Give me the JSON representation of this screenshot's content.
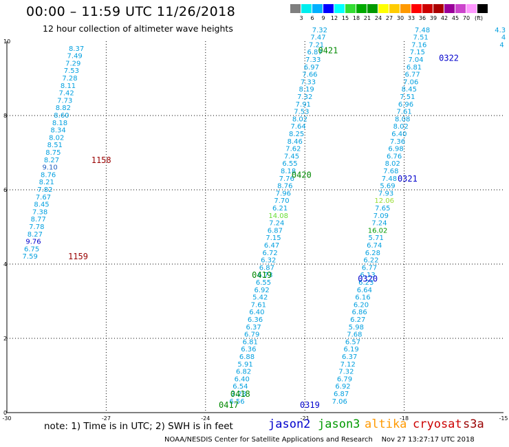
{
  "header": {
    "title": "00:00 – 11:59 UTC 11/26/2018",
    "subtitle": "12 hour collection of altimeter wave heights"
  },
  "legend": {
    "colors": [
      "#7f7f7f",
      "#00eeee",
      "#00b0ff",
      "#0000ff",
      "#00ffff",
      "#33dd33",
      "#00aa00",
      "#009900",
      "#ffff00",
      "#ffcc00",
      "#ff9900",
      "#ff0000",
      "#cc0000",
      "#aa0000",
      "#990099",
      "#cc44cc",
      "#ff99ff",
      "#000000"
    ],
    "labels": [
      "3",
      "6",
      "9",
      "12",
      "15",
      "18",
      "21",
      "24",
      "27",
      "30",
      "33",
      "36",
      "39",
      "42",
      "45",
      "70",
      "(ft)"
    ]
  },
  "footer": {
    "note": "note: 1) Time is in UTC; 2) SWH is in feet",
    "credit": "NOAA/NESDIS Center for Satellite Applications and Research    Nov 27 13:27:17 UTC 2018"
  },
  "satellites": [
    {
      "name": "jason2",
      "color": "#0000cc"
    },
    {
      "name": "jason3",
      "color": "#009900"
    },
    {
      "name": "altika",
      "color": "#ff9900"
    },
    {
      "name": "cryosat",
      "color": "#cc0000"
    },
    {
      "name": "s3a",
      "color": "#990000"
    }
  ],
  "chart_data": {
    "type": "scatter",
    "xlim": [
      -30,
      -15
    ],
    "ylim": [
      0,
      10
    ],
    "xticks": [
      "-30",
      "-27",
      "-24",
      "-21",
      "-18",
      "-15"
    ],
    "yticks": [
      "0",
      "2",
      "4",
      "6",
      "8",
      "10"
    ],
    "grid": true,
    "tracks": [
      {
        "color": "#009fdf",
        "points": [
          {
            "x": -27.9,
            "y": 9.8,
            "v": "8.37"
          },
          {
            "x": -27.95,
            "y": 9.6,
            "v": "7.49"
          },
          {
            "x": -28.0,
            "y": 9.4,
            "v": "7.29"
          },
          {
            "x": -28.05,
            "y": 9.2,
            "v": "7.53"
          },
          {
            "x": -28.1,
            "y": 9.0,
            "v": "7.28"
          },
          {
            "x": -28.15,
            "y": 8.8,
            "v": "8.11"
          },
          {
            "x": -28.2,
            "y": 8.6,
            "v": "7.42"
          },
          {
            "x": -28.25,
            "y": 8.4,
            "v": "7.73"
          },
          {
            "x": -28.3,
            "y": 8.2,
            "v": "8.82"
          },
          {
            "x": -28.35,
            "y": 8.0,
            "v": "8.60"
          },
          {
            "x": -28.4,
            "y": 7.8,
            "v": "8.18"
          },
          {
            "x": -28.45,
            "y": 7.6,
            "v": "8.34"
          },
          {
            "x": -28.5,
            "y": 7.4,
            "v": "8.02"
          },
          {
            "x": -28.55,
            "y": 7.2,
            "v": "8.51"
          },
          {
            "x": -28.6,
            "y": 7.0,
            "v": "8.75"
          },
          {
            "x": -28.65,
            "y": 6.8,
            "v": "8.27"
          },
          {
            "x": -28.7,
            "y": 6.6,
            "v": "9.10",
            "c": "#1f5fbf"
          },
          {
            "x": -28.75,
            "y": 6.4,
            "v": "8.76"
          },
          {
            "x": -28.8,
            "y": 6.2,
            "v": "8.21"
          },
          {
            "x": -28.85,
            "y": 6.0,
            "v": "7.82"
          },
          {
            "x": -28.9,
            "y": 5.8,
            "v": "7.67"
          },
          {
            "x": -28.95,
            "y": 5.6,
            "v": "8.45"
          },
          {
            "x": -29.0,
            "y": 5.4,
            "v": "7.38"
          },
          {
            "x": -29.05,
            "y": 5.2,
            "v": "8.77"
          },
          {
            "x": -29.1,
            "y": 5.0,
            "v": "7.78"
          },
          {
            "x": -29.15,
            "y": 4.8,
            "v": "8.27"
          },
          {
            "x": -29.2,
            "y": 4.6,
            "v": "9.76",
            "c": "#0000cc"
          },
          {
            "x": -29.25,
            "y": 4.4,
            "v": "6.75"
          },
          {
            "x": -29.3,
            "y": 4.2,
            "v": "7.59"
          }
        ]
      },
      {
        "color": "#009fdf",
        "points": [
          {
            "x": -20.55,
            "y": 10.3,
            "v": "7.32"
          },
          {
            "x": -20.6,
            "y": 10.1,
            "v": "7.47"
          },
          {
            "x": -20.65,
            "y": 9.9,
            "v": "7.21"
          },
          {
            "x": -20.7,
            "y": 9.7,
            "v": "6.87"
          },
          {
            "x": -20.75,
            "y": 9.5,
            "v": "7.33"
          },
          {
            "x": -20.8,
            "y": 9.3,
            "v": "6.97"
          },
          {
            "x": -20.85,
            "y": 9.1,
            "v": "7.66"
          },
          {
            "x": -20.9,
            "y": 8.9,
            "v": "7.33"
          },
          {
            "x": -20.95,
            "y": 8.7,
            "v": "8.19"
          },
          {
            "x": -21.0,
            "y": 8.5,
            "v": "7.32"
          },
          {
            "x": -21.05,
            "y": 8.3,
            "v": "7.91"
          },
          {
            "x": -21.1,
            "y": 8.1,
            "v": "7.53"
          },
          {
            "x": -21.15,
            "y": 7.9,
            "v": "8.02"
          },
          {
            "x": -21.2,
            "y": 7.7,
            "v": "7.64"
          },
          {
            "x": -21.25,
            "y": 7.5,
            "v": "8.25"
          },
          {
            "x": -21.3,
            "y": 7.3,
            "v": "8.46"
          },
          {
            "x": -21.35,
            "y": 7.1,
            "v": "7.62"
          },
          {
            "x": -21.4,
            "y": 6.9,
            "v": "7.45"
          },
          {
            "x": -21.45,
            "y": 6.7,
            "v": "6.55"
          },
          {
            "x": -21.5,
            "y": 6.5,
            "v": "8.18"
          },
          {
            "x": -21.55,
            "y": 6.3,
            "v": "7.76"
          },
          {
            "x": -21.6,
            "y": 6.1,
            "v": "8.76"
          },
          {
            "x": -21.65,
            "y": 5.9,
            "v": "7.96"
          },
          {
            "x": -21.7,
            "y": 5.7,
            "v": "7.70"
          },
          {
            "x": -21.75,
            "y": 5.5,
            "v": "6.21"
          },
          {
            "x": -21.8,
            "y": 5.3,
            "v": "14.08",
            "c": "#66dd33"
          },
          {
            "x": -21.85,
            "y": 5.1,
            "v": "7.24"
          },
          {
            "x": -21.9,
            "y": 4.9,
            "v": "6.87"
          },
          {
            "x": -21.95,
            "y": 4.7,
            "v": "7.15"
          },
          {
            "x": -22.0,
            "y": 4.5,
            "v": "6.47"
          },
          {
            "x": -22.05,
            "y": 4.3,
            "v": "6.72"
          },
          {
            "x": -22.1,
            "y": 4.1,
            "v": "6.32"
          },
          {
            "x": -22.15,
            "y": 3.9,
            "v": "6.87"
          },
          {
            "x": -22.2,
            "y": 3.7,
            "v": "6.73"
          },
          {
            "x": -22.25,
            "y": 3.5,
            "v": "6.55"
          },
          {
            "x": -22.3,
            "y": 3.3,
            "v": "6.92"
          },
          {
            "x": -22.35,
            "y": 3.1,
            "v": "5.42"
          },
          {
            "x": -22.4,
            "y": 2.9,
            "v": "7.61"
          },
          {
            "x": -22.45,
            "y": 2.7,
            "v": "6.40"
          },
          {
            "x": -22.5,
            "y": 2.5,
            "v": "6.36"
          },
          {
            "x": -22.55,
            "y": 2.3,
            "v": "6.37"
          },
          {
            "x": -22.6,
            "y": 2.1,
            "v": "6.79"
          },
          {
            "x": -22.65,
            "y": 1.9,
            "v": "6.81"
          },
          {
            "x": -22.7,
            "y": 1.7,
            "v": "6.36"
          },
          {
            "x": -22.75,
            "y": 1.5,
            "v": "6.88"
          },
          {
            "x": -22.8,
            "y": 1.3,
            "v": "5.91"
          },
          {
            "x": -22.85,
            "y": 1.1,
            "v": "6.82"
          },
          {
            "x": -22.9,
            "y": 0.9,
            "v": "6.40"
          },
          {
            "x": -22.95,
            "y": 0.7,
            "v": "6.54"
          },
          {
            "x": -23.0,
            "y": 0.5,
            "v": "7.28"
          },
          {
            "x": -23.05,
            "y": 0.3,
            "v": "6.56"
          }
        ]
      },
      {
        "color": "#009fdf",
        "points": [
          {
            "x": -17.45,
            "y": 10.3,
            "v": "7.48"
          },
          {
            "x": -17.5,
            "y": 10.1,
            "v": "7.51"
          },
          {
            "x": -17.55,
            "y": 9.9,
            "v": "7.16"
          },
          {
            "x": -17.6,
            "y": 9.7,
            "v": "7.15"
          },
          {
            "x": -17.65,
            "y": 9.5,
            "v": "7.04"
          },
          {
            "x": -17.7,
            "y": 9.3,
            "v": "6.81"
          },
          {
            "x": -17.75,
            "y": 9.1,
            "v": "6.77"
          },
          {
            "x": -17.8,
            "y": 8.9,
            "v": "7.06"
          },
          {
            "x": -17.85,
            "y": 8.7,
            "v": "8.45"
          },
          {
            "x": -17.9,
            "y": 8.5,
            "v": "7.51"
          },
          {
            "x": -17.95,
            "y": 8.3,
            "v": "6.96"
          },
          {
            "x": -18.0,
            "y": 8.1,
            "v": "7.61"
          },
          {
            "x": -18.05,
            "y": 7.9,
            "v": "8.08"
          },
          {
            "x": -18.1,
            "y": 7.7,
            "v": "8.02"
          },
          {
            "x": -18.15,
            "y": 7.5,
            "v": "6.40"
          },
          {
            "x": -18.2,
            "y": 7.3,
            "v": "7.36"
          },
          {
            "x": -18.25,
            "y": 7.1,
            "v": "6.98"
          },
          {
            "x": -18.3,
            "y": 6.9,
            "v": "6.76"
          },
          {
            "x": -18.35,
            "y": 6.7,
            "v": "8.02"
          },
          {
            "x": -18.4,
            "y": 6.5,
            "v": "7.68"
          },
          {
            "x": -18.45,
            "y": 6.3,
            "v": "7.48"
          },
          {
            "x": -18.5,
            "y": 6.1,
            "v": "5.69"
          },
          {
            "x": -18.55,
            "y": 5.9,
            "v": "7.93"
          },
          {
            "x": -18.6,
            "y": 5.7,
            "v": "12.06",
            "c": "#99dd33"
          },
          {
            "x": -18.65,
            "y": 5.5,
            "v": "7.65"
          },
          {
            "x": -18.7,
            "y": 5.3,
            "v": "7.09"
          },
          {
            "x": -18.75,
            "y": 5.1,
            "v": "7.24"
          },
          {
            "x": -18.8,
            "y": 4.9,
            "v": "16.02",
            "c": "#009900"
          },
          {
            "x": -18.85,
            "y": 4.7,
            "v": "5.71"
          },
          {
            "x": -18.9,
            "y": 4.5,
            "v": "6.74"
          },
          {
            "x": -18.95,
            "y": 4.3,
            "v": "6.28"
          },
          {
            "x": -19.0,
            "y": 4.1,
            "v": "6.22"
          },
          {
            "x": -19.05,
            "y": 3.9,
            "v": "6.77"
          },
          {
            "x": -19.1,
            "y": 3.7,
            "v": "6.13"
          },
          {
            "x": -19.15,
            "y": 3.5,
            "v": "6.23"
          },
          {
            "x": -19.2,
            "y": 3.3,
            "v": "6.64"
          },
          {
            "x": -19.25,
            "y": 3.1,
            "v": "6.16"
          },
          {
            "x": -19.3,
            "y": 2.9,
            "v": "6.20"
          },
          {
            "x": -19.35,
            "y": 2.7,
            "v": "6.86"
          },
          {
            "x": -19.4,
            "y": 2.5,
            "v": "6.27"
          },
          {
            "x": -19.45,
            "y": 2.3,
            "v": "5.98"
          },
          {
            "x": -19.5,
            "y": 2.1,
            "v": "7.68"
          },
          {
            "x": -19.55,
            "y": 1.9,
            "v": "6.57"
          },
          {
            "x": -19.6,
            "y": 1.7,
            "v": "6.19"
          },
          {
            "x": -19.65,
            "y": 1.5,
            "v": "6.37"
          },
          {
            "x": -19.7,
            "y": 1.3,
            "v": "7.12"
          },
          {
            "x": -19.75,
            "y": 1.1,
            "v": "7.32"
          },
          {
            "x": -19.8,
            "y": 0.9,
            "v": "6.79"
          },
          {
            "x": -19.85,
            "y": 0.7,
            "v": "6.92"
          },
          {
            "x": -19.9,
            "y": 0.5,
            "v": "6.87"
          },
          {
            "x": -19.95,
            "y": 0.3,
            "v": "7.06"
          }
        ]
      },
      {
        "color": "#009fdf",
        "points": [
          {
            "x": -15.1,
            "y": 10.3,
            "v": "4.3"
          },
          {
            "x": -15.0,
            "y": 10.1,
            "v": "4"
          },
          {
            "x": -15.05,
            "y": 9.9,
            "v": "4"
          }
        ]
      }
    ],
    "time_labels": [
      {
        "x": -27.15,
        "y": 6.8,
        "v": "1158",
        "c": "#990000"
      },
      {
        "x": -27.85,
        "y": 4.2,
        "v": "1159",
        "c": "#990000"
      },
      {
        "x": -20.3,
        "y": 9.75,
        "v": "0421",
        "c": "#008800"
      },
      {
        "x": -21.1,
        "y": 6.4,
        "v": "0420",
        "c": "#008800"
      },
      {
        "x": -22.3,
        "y": 3.7,
        "v": "0419",
        "c": "#008800"
      },
      {
        "x": -22.95,
        "y": 0.5,
        "v": "0418",
        "c": "#008800"
      },
      {
        "x": -23.3,
        "y": 0.2,
        "v": "0417",
        "c": "#008800"
      },
      {
        "x": -16.65,
        "y": 9.55,
        "v": "0322",
        "c": "#0000cc"
      },
      {
        "x": -17.9,
        "y": 6.3,
        "v": "0321",
        "c": "#0000cc"
      },
      {
        "x": -19.1,
        "y": 3.6,
        "v": "0320",
        "c": "#0000cc"
      },
      {
        "x": -20.85,
        "y": 0.2,
        "v": "0319",
        "c": "#0000cc"
      }
    ]
  }
}
